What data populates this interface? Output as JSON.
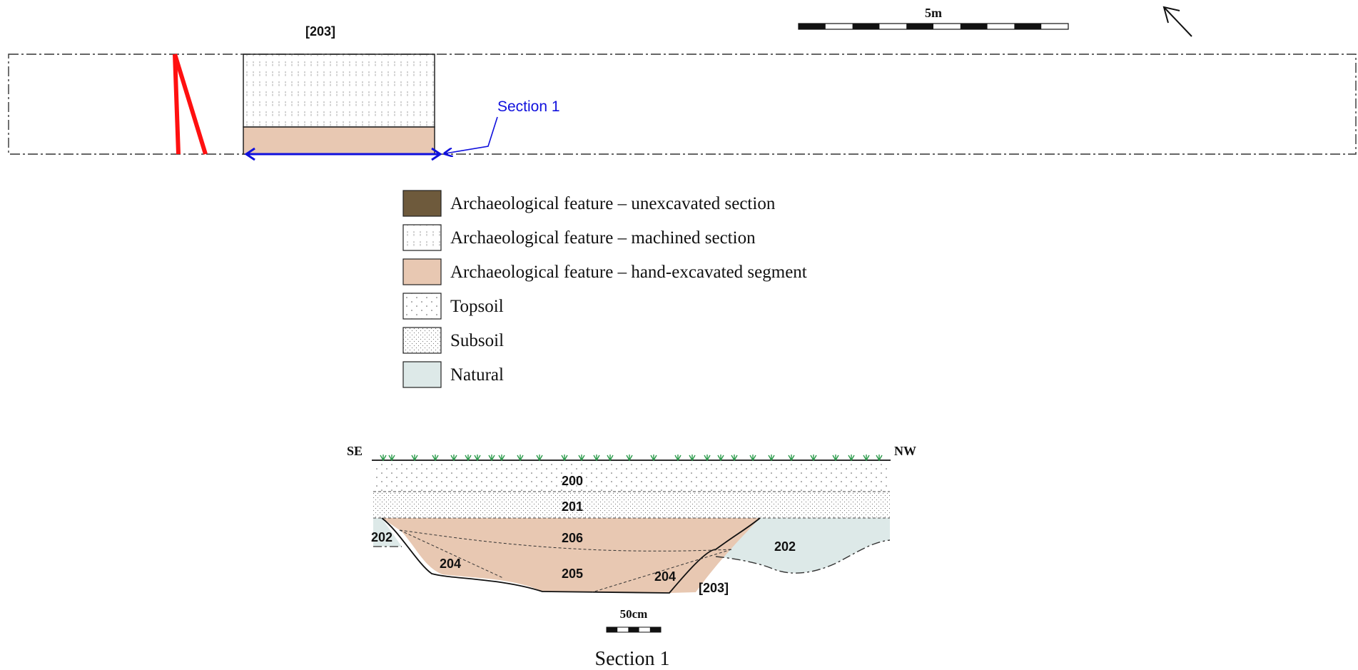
{
  "plan": {
    "feature_label": "[203]",
    "section_label": "Section 1",
    "scale_label": "5m"
  },
  "legend": [
    {
      "label": "Archaeological feature – unexcavated section",
      "fill": "#6e5a3c",
      "pattern": "solid"
    },
    {
      "label": "Archaeological feature – machined section",
      "fill": "#ffffff",
      "pattern": "dashes"
    },
    {
      "label": "Archaeological feature – hand-excavated segment",
      "fill": "#e8c8b2",
      "pattern": "solid"
    },
    {
      "label": "Topsoil",
      "fill": "#ffffff",
      "pattern": "sparse-dots"
    },
    {
      "label": "Subsoil",
      "fill": "#ffffff",
      "pattern": "dense-dots"
    },
    {
      "label": "Natural",
      "fill": "#dde9e8",
      "pattern": "solid"
    }
  ],
  "section": {
    "left_orientation": "SE",
    "right_orientation": "NW",
    "contexts": {
      "topsoil": "200",
      "subsoil": "201",
      "natural_left": "202",
      "natural_right": "202",
      "fill_upper": "206",
      "fill_lower": "205",
      "fill_left": "204",
      "fill_right": "204",
      "cut": "[203]"
    },
    "scale_label": "50cm",
    "caption": "Section 1"
  },
  "colors": {
    "section_arrow": "#1010dd",
    "plough_marks": "#ff1010",
    "turf": "#2a9a4a",
    "hand_excavated": "#e8c8b2",
    "natural": "#dde9e8"
  },
  "icons": {
    "north_arrow": "north-arrow-icon"
  }
}
